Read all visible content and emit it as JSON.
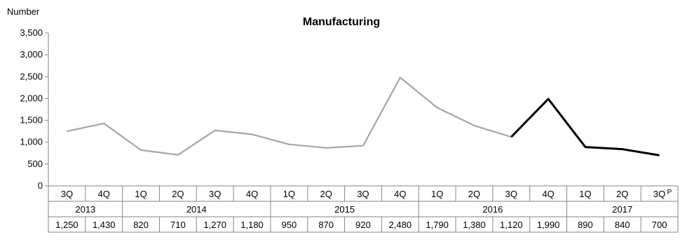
{
  "chart_data": {
    "type": "line",
    "title": "Manufacturing",
    "ylabel": "Number",
    "ylim": [
      0,
      3500
    ],
    "yticks": [
      0,
      500,
      1000,
      1500,
      2000,
      2500,
      3000,
      3500
    ],
    "ytick_labels": [
      "0",
      "500",
      "1,000",
      "1,500",
      "2,000",
      "2,500",
      "3,000",
      "3,500"
    ],
    "categories": [
      "3Q",
      "4Q",
      "1Q",
      "2Q",
      "3Q",
      "4Q",
      "1Q",
      "2Q",
      "3Q",
      "4Q",
      "1Q",
      "2Q",
      "3Q",
      "4Q",
      "1Q",
      "2Q",
      "3Q"
    ],
    "years": [
      {
        "label": "2013",
        "span": 2
      },
      {
        "label": "2014",
        "span": 4
      },
      {
        "label": "2015",
        "span": 4
      },
      {
        "label": "2016",
        "span": 4
      },
      {
        "label": "2017",
        "span": 3
      }
    ],
    "values": [
      1250,
      1430,
      820,
      710,
      1270,
      1180,
      950,
      870,
      920,
      2480,
      1790,
      1380,
      1120,
      1990,
      890,
      840,
      700
    ],
    "value_labels": [
      "1,250",
      "1,430",
      "820",
      "710",
      "1,270",
      "1,180",
      "950",
      "870",
      "920",
      "2,480",
      "1,790",
      "1,380",
      "1,120",
      "1,990",
      "890",
      "840",
      "700"
    ],
    "provisional_marker": "P",
    "highlight_from_index": 12,
    "colors": {
      "base": "#a6a6a6",
      "highlight": "#000000",
      "axis": "#868686",
      "grid": "#b0b0b0"
    },
    "grid": false,
    "legend": "none"
  }
}
